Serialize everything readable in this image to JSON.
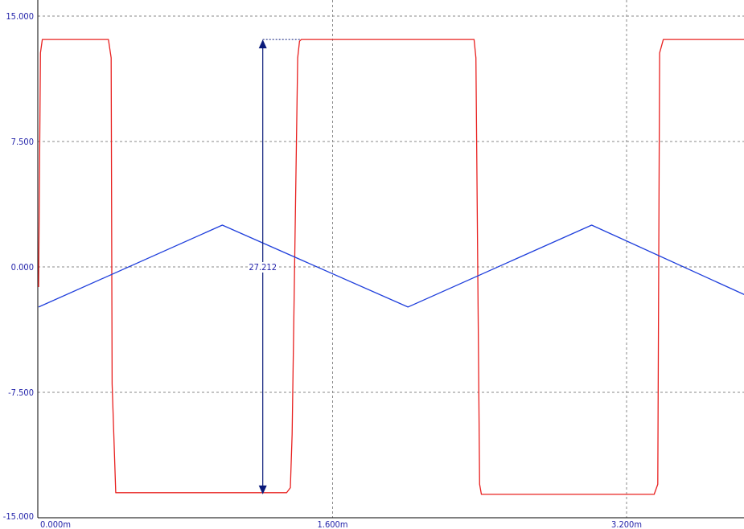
{
  "chart_data": {
    "type": "line",
    "title": "",
    "xlabel": "",
    "ylabel": "",
    "xlim": [
      0.0,
      3.85
    ],
    "ylim": [
      -15.0,
      15.0
    ],
    "grid": true,
    "y_ticks": [
      {
        "value": 15.0,
        "label": "15.000"
      },
      {
        "value": 7.5,
        "label": "7.500"
      },
      {
        "value": 0.0,
        "label": "0.000"
      },
      {
        "value": -7.5,
        "label": "-7.500"
      },
      {
        "value": -15.0,
        "label": "-15.000"
      }
    ],
    "x_ticks": [
      {
        "value": 0.0,
        "label": "0.000m"
      },
      {
        "value": 1.6,
        "label": "1.600m"
      },
      {
        "value": 3.2,
        "label": "3.200m"
      }
    ],
    "x_unit": "ms",
    "series": [
      {
        "color": "#e8201f",
        "x": [
          0.0,
          0.01,
          0.02,
          0.38,
          0.395,
          0.4,
          0.42,
          1.35,
          1.37,
          1.38,
          1.41,
          1.42,
          1.43,
          2.37,
          2.38,
          2.4,
          2.41,
          3.35,
          3.37,
          3.38,
          3.4,
          3.85
        ],
        "y": [
          -1.2,
          12.8,
          13.6,
          13.6,
          12.5,
          -7.0,
          -13.5,
          -13.5,
          -13.2,
          -10.0,
          12.5,
          13.5,
          13.6,
          13.6,
          12.5,
          -13.0,
          -13.6,
          -13.6,
          -13.0,
          12.8,
          13.6,
          13.6
        ]
      },
      {
        "color": "#1f3fdc",
        "x": [
          0.0,
          1.0,
          2.01,
          3.01,
          3.85
        ],
        "y": [
          -2.4,
          2.5,
          -2.4,
          2.5,
          -1.7
        ]
      }
    ],
    "annotations": [
      {
        "type": "measurement",
        "label": "27.212",
        "x": 1.22,
        "y_from": -13.6,
        "y_to": 13.6,
        "color": "#0a1a7a"
      }
    ]
  }
}
